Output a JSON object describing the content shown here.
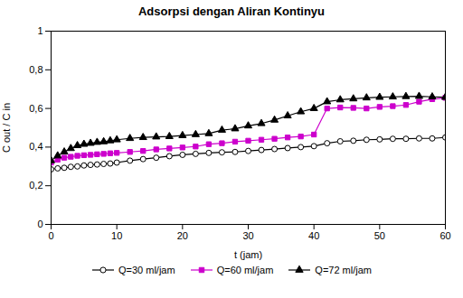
{
  "chart_data": {
    "type": "line",
    "title": "Adsorpsi dengan Aliran Kontinyu",
    "xlabel": "t (jam)",
    "ylabel": "C out / C in",
    "xlim": [
      0,
      60
    ],
    "ylim": [
      0,
      1
    ],
    "xticks": [
      0,
      10,
      20,
      30,
      40,
      50,
      60
    ],
    "yticks": [
      0,
      {
        "value": 0.2,
        "label": "0,2"
      },
      {
        "value": 0.4,
        "label": "0,4"
      },
      {
        "value": 0.6,
        "label": "0,6"
      },
      {
        "value": 0.8,
        "label": "0,8"
      },
      1
    ],
    "grid": false,
    "legend": "bottom",
    "x": [
      0,
      1,
      2,
      3,
      4,
      5,
      6,
      7,
      8,
      9,
      10,
      12,
      14,
      16,
      18,
      20,
      22,
      24,
      26,
      28,
      30,
      32,
      34,
      36,
      38,
      40,
      42,
      44,
      46,
      48,
      50,
      52,
      54,
      56,
      58,
      60
    ],
    "series": [
      {
        "name": "Q=30 ml/jam",
        "color": "#000000",
        "marker": "circle_open",
        "values": [
          0.285,
          0.29,
          0.293,
          0.298,
          0.3,
          0.305,
          0.308,
          0.31,
          0.313,
          0.315,
          0.32,
          0.33,
          0.338,
          0.345,
          0.353,
          0.36,
          0.365,
          0.37,
          0.373,
          0.375,
          0.38,
          0.385,
          0.39,
          0.395,
          0.4,
          0.405,
          0.42,
          0.43,
          0.433,
          0.438,
          0.44,
          0.443,
          0.443,
          0.445,
          0.445,
          0.45
        ]
      },
      {
        "name": "Q=60 ml/jam",
        "color": "#cc00cc",
        "marker": "square",
        "values": [
          0.32,
          0.335,
          0.345,
          0.35,
          0.355,
          0.358,
          0.36,
          0.363,
          0.365,
          0.368,
          0.37,
          0.375,
          0.38,
          0.388,
          0.393,
          0.398,
          0.403,
          0.415,
          0.42,
          0.428,
          0.433,
          0.438,
          0.443,
          0.45,
          0.455,
          0.465,
          0.6,
          0.605,
          0.603,
          0.6,
          0.608,
          0.612,
          0.618,
          0.635,
          0.648,
          0.655
        ]
      },
      {
        "name": "Q=72 ml/jam",
        "color": "#000000",
        "marker": "triangle",
        "values": [
          0.33,
          0.355,
          0.375,
          0.393,
          0.408,
          0.415,
          0.42,
          0.425,
          0.428,
          0.433,
          0.438,
          0.445,
          0.45,
          0.453,
          0.455,
          0.46,
          0.465,
          0.47,
          0.488,
          0.495,
          0.51,
          0.522,
          0.54,
          0.562,
          0.583,
          0.6,
          0.635,
          0.645,
          0.65,
          0.655,
          0.658,
          0.66,
          0.662,
          0.663,
          0.66,
          0.658
        ]
      }
    ]
  }
}
